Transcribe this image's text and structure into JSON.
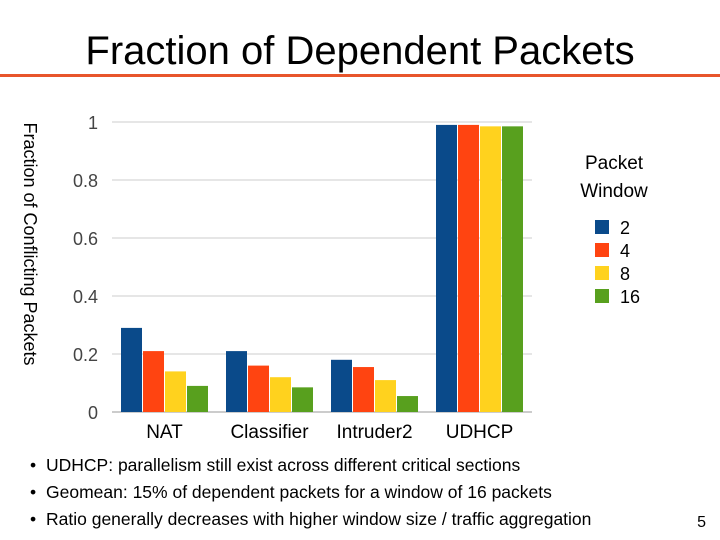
{
  "slide": {
    "title": "Fraction of Dependent Packets",
    "page_number": "5",
    "accent_color": "#e8552b"
  },
  "bullets": [
    "UDHCP: parallelism still exist across different critical sections",
    "Geomean: 15% of dependent packets for a window of 16 packets",
    "Ratio generally decreases with higher window size / traffic aggregation"
  ],
  "chart_data": {
    "type": "bar",
    "title": "",
    "xlabel": "",
    "ylabel": "Fraction of Conflicting Packets",
    "ylim": [
      0,
      1
    ],
    "yticks": [
      "0",
      "0.2",
      "0.4",
      "0.6",
      "0.8",
      "1"
    ],
    "categories": [
      "NAT",
      "Classifier",
      "Intruder2",
      "UDHCP"
    ],
    "legend_title": [
      "Packet",
      "Window"
    ],
    "legend_position": "right",
    "series": [
      {
        "name": "2",
        "color": "#0a4a8a",
        "values": [
          0.29,
          0.21,
          0.18,
          0.99
        ]
      },
      {
        "name": "4",
        "color": "#ff4411",
        "values": [
          0.21,
          0.16,
          0.155,
          0.99
        ]
      },
      {
        "name": "8",
        "color": "#ffd21e",
        "values": [
          0.14,
          0.12,
          0.11,
          0.985
        ]
      },
      {
        "name": "16",
        "color": "#58a01e",
        "values": [
          0.09,
          0.085,
          0.055,
          0.985
        ]
      }
    ]
  }
}
